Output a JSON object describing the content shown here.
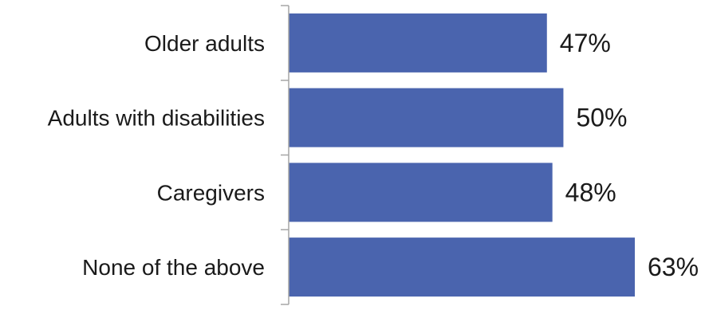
{
  "chart_data": {
    "type": "bar",
    "orientation": "horizontal",
    "categories": [
      "Older adults",
      "Adults with disabilities",
      "Caregivers",
      "None of the above"
    ],
    "values": [
      47,
      50,
      48,
      63
    ],
    "data_labels": [
      "47%",
      "50%",
      "48%",
      "63%"
    ],
    "title": "",
    "xlabel": "",
    "ylabel": "",
    "xlim": [
      0,
      66
    ],
    "grid": false,
    "legend": "none",
    "bar_color": "#4a64ae",
    "axis_color": "#a6a6a6"
  }
}
